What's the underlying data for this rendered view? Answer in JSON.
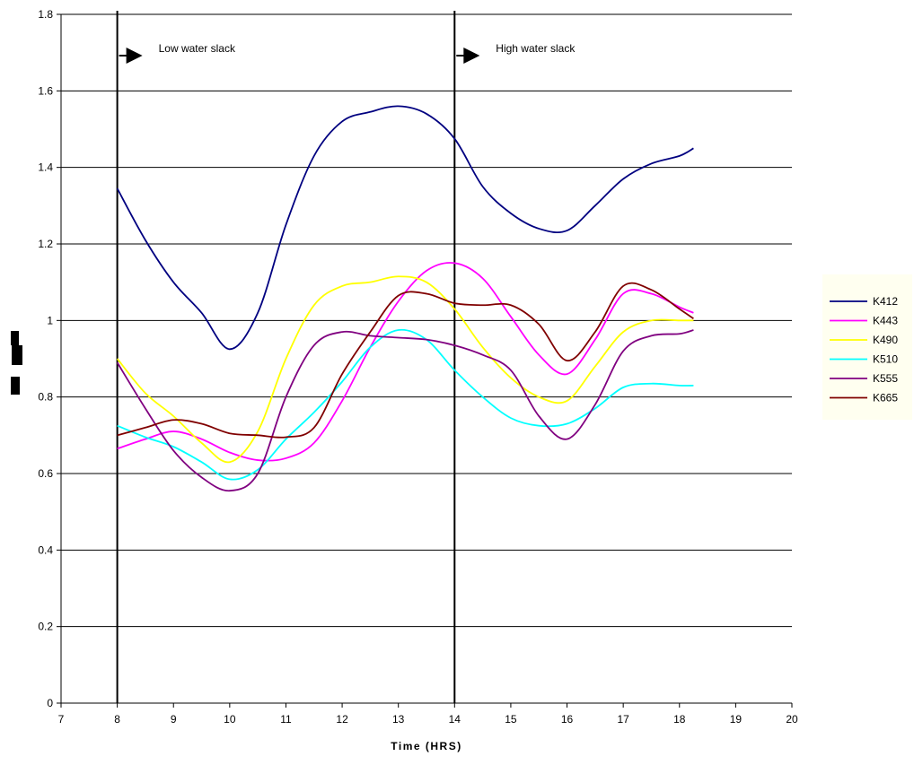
{
  "chart_data": {
    "type": "line",
    "title": "",
    "xlabel": "Time (HRS)",
    "ylabel": "",
    "xlim": [
      7,
      20
    ],
    "ylim": [
      0,
      1.8
    ],
    "x_ticks": [
      "7",
      "8",
      "9",
      "10",
      "11",
      "12",
      "13",
      "14",
      "15",
      "16",
      "17",
      "18",
      "19",
      "20"
    ],
    "y_ticks": [
      "0",
      "0.2",
      "0.4",
      "0.6",
      "0.8",
      "1",
      "1.2",
      "1.4",
      "1.6",
      "1.8"
    ],
    "grid": "horizontal",
    "legend_position": "right",
    "x": [
      8,
      8.5,
      9,
      9.5,
      10,
      10.5,
      11,
      11.5,
      12,
      12.5,
      13,
      13.5,
      14,
      14.5,
      15,
      15.5,
      16,
      16.5,
      17,
      17.5,
      18,
      18.25
    ],
    "series": [
      {
        "name": "K412",
        "color": "#000080",
        "values": [
          1.345,
          1.21,
          1.1,
          1.02,
          0.925,
          1.02,
          1.25,
          1.43,
          1.52,
          1.545,
          1.56,
          1.54,
          1.475,
          1.35,
          1.28,
          1.24,
          1.235,
          1.3,
          1.37,
          1.41,
          1.43,
          1.45
        ]
      },
      {
        "name": "K443",
        "color": "#ff00ff",
        "values": [
          0.665,
          0.69,
          0.71,
          0.69,
          0.655,
          0.635,
          0.64,
          0.68,
          0.79,
          0.93,
          1.05,
          1.13,
          1.15,
          1.11,
          1.01,
          0.91,
          0.86,
          0.95,
          1.07,
          1.07,
          1.035,
          1.02
        ]
      },
      {
        "name": "K490",
        "color": "#ffff00",
        "values": [
          0.9,
          0.81,
          0.75,
          0.68,
          0.63,
          0.71,
          0.9,
          1.04,
          1.09,
          1.1,
          1.115,
          1.1,
          1.03,
          0.93,
          0.85,
          0.8,
          0.79,
          0.88,
          0.97,
          1.0,
          1.0,
          1.0
        ]
      },
      {
        "name": "K510",
        "color": "#00ffff",
        "values": [
          0.725,
          0.695,
          0.67,
          0.63,
          0.585,
          0.61,
          0.69,
          0.76,
          0.84,
          0.93,
          0.975,
          0.95,
          0.87,
          0.8,
          0.745,
          0.725,
          0.73,
          0.77,
          0.825,
          0.835,
          0.83,
          0.83
        ]
      },
      {
        "name": "K555",
        "color": "#800080",
        "values": [
          0.89,
          0.77,
          0.66,
          0.59,
          0.555,
          0.6,
          0.8,
          0.935,
          0.97,
          0.96,
          0.955,
          0.95,
          0.935,
          0.91,
          0.87,
          0.75,
          0.69,
          0.78,
          0.92,
          0.96,
          0.965,
          0.975
        ]
      },
      {
        "name": "K665",
        "color": "#800000",
        "values": [
          0.7,
          0.72,
          0.74,
          0.73,
          0.705,
          0.7,
          0.695,
          0.72,
          0.86,
          0.97,
          1.065,
          1.07,
          1.045,
          1.04,
          1.04,
          0.99,
          0.895,
          0.97,
          1.09,
          1.08,
          1.03,
          1.005
        ]
      }
    ],
    "annotations": [
      {
        "text": "Low water slack",
        "x": 8
      },
      {
        "text": "High water slack",
        "x": 14
      }
    ],
    "vertical_markers": [
      8,
      14
    ]
  }
}
